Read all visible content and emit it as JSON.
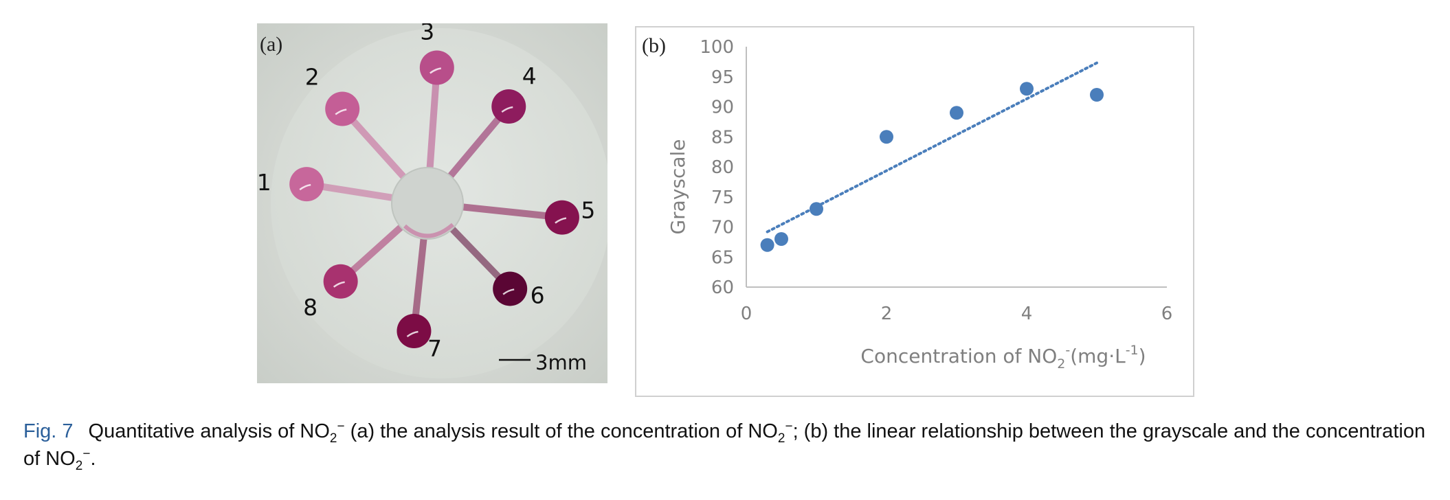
{
  "panel_a": {
    "tag": "(a)",
    "wells": [
      {
        "label": "1",
        "color": "#c7679b"
      },
      {
        "label": "2",
        "color": "#c45e96"
      },
      {
        "label": "3",
        "color": "#b84e8a"
      },
      {
        "label": "4",
        "color": "#8e1c5e"
      },
      {
        "label": "5",
        "color": "#85124f"
      },
      {
        "label": "6",
        "color": "#5a0634"
      },
      {
        "label": "7",
        "color": "#7c0c45"
      },
      {
        "label": "8",
        "color": "#a8326f"
      }
    ],
    "scale_bar": "3mm"
  },
  "panel_b": {
    "tag": "(b)"
  },
  "chart_data": {
    "type": "scatter",
    "ylabel": "Grayscale",
    "xlabel": {
      "main": "Concentration of NO",
      "sub": "2",
      "sup1": "-",
      "unit": "(mg·L",
      "sup2": "-1",
      "close": ")"
    },
    "xlim": [
      0,
      6
    ],
    "ylim": [
      60,
      100
    ],
    "xticks": [
      "0",
      "2",
      "4",
      "6"
    ],
    "yticks": [
      "60",
      "65",
      "70",
      "75",
      "80",
      "85",
      "90",
      "95",
      "100"
    ],
    "points": [
      {
        "x": 0.3,
        "y": 67
      },
      {
        "x": 0.5,
        "y": 68
      },
      {
        "x": 1,
        "y": 73
      },
      {
        "x": 2,
        "y": 85
      },
      {
        "x": 3,
        "y": 89
      },
      {
        "x": 4,
        "y": 93
      },
      {
        "x": 5,
        "y": 92
      }
    ],
    "trendline": {
      "style": "dotted",
      "x": [
        0.3,
        5
      ],
      "y": [
        69.2,
        97.3
      ]
    },
    "marker_color": "#4a7ebb",
    "grid": false,
    "legend": "none"
  },
  "caption": {
    "fig_label": "Fig. 7",
    "t1": "Quantitative analysis of NO",
    "sub1": "2",
    "sup1": "−",
    "t2": " (a) the analysis result of the concentration of NO",
    "sub2": "2",
    "sup2": "−",
    "t3": "; (b) the linear relationship between the grayscale and the concentration of NO",
    "sub3": "2",
    "sup3": "−",
    "t4": "."
  }
}
